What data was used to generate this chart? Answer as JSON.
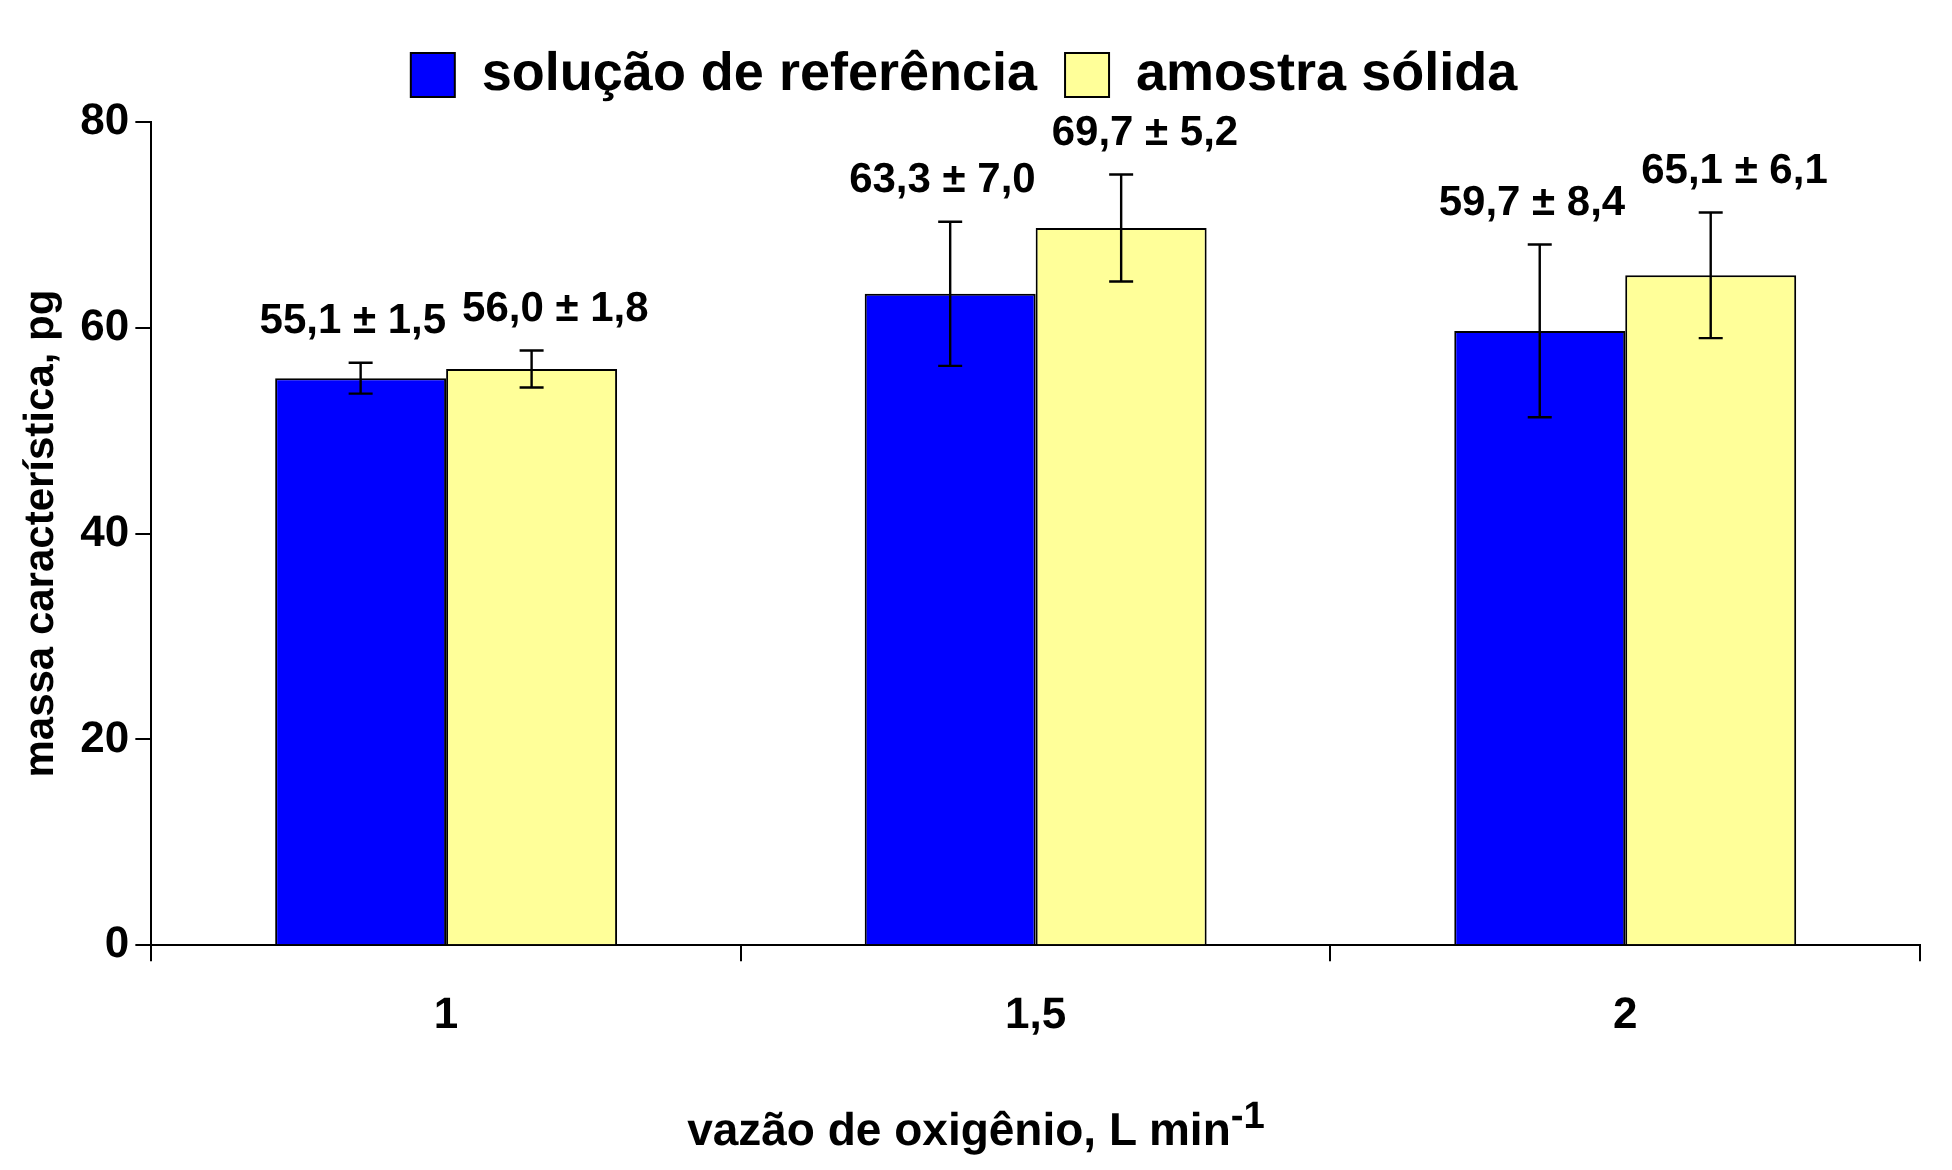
{
  "chart_data": {
    "type": "bar",
    "xlabel": "vazão de oxigênio, L min$^{-1}$",
    "ylabel": "massa característica, pg",
    "categories": [
      "1",
      "1,5",
      "2"
    ],
    "series": [
      {
        "name": "solução de referência",
        "color": "#0000ff",
        "values": [
          55.1,
          63.3,
          59.7
        ],
        "errors": [
          1.5,
          7.0,
          8.4
        ],
        "value_labels": [
          "55,1 ± 1,5",
          "63,3 ± 7,0",
          "59,7 ± 8,4"
        ]
      },
      {
        "name": "amostra sólida",
        "color": "#ffff99",
        "values": [
          56.0,
          69.7,
          65.1
        ],
        "errors": [
          1.8,
          5.2,
          6.1
        ],
        "value_labels": [
          "56,0 ± 1,8",
          "69,7 ± 5,2",
          "65,1 ± 6,1"
        ]
      }
    ],
    "ylim": [
      0,
      80
    ],
    "yticks": [
      0,
      20,
      40,
      60,
      80
    ],
    "legend": "top"
  }
}
